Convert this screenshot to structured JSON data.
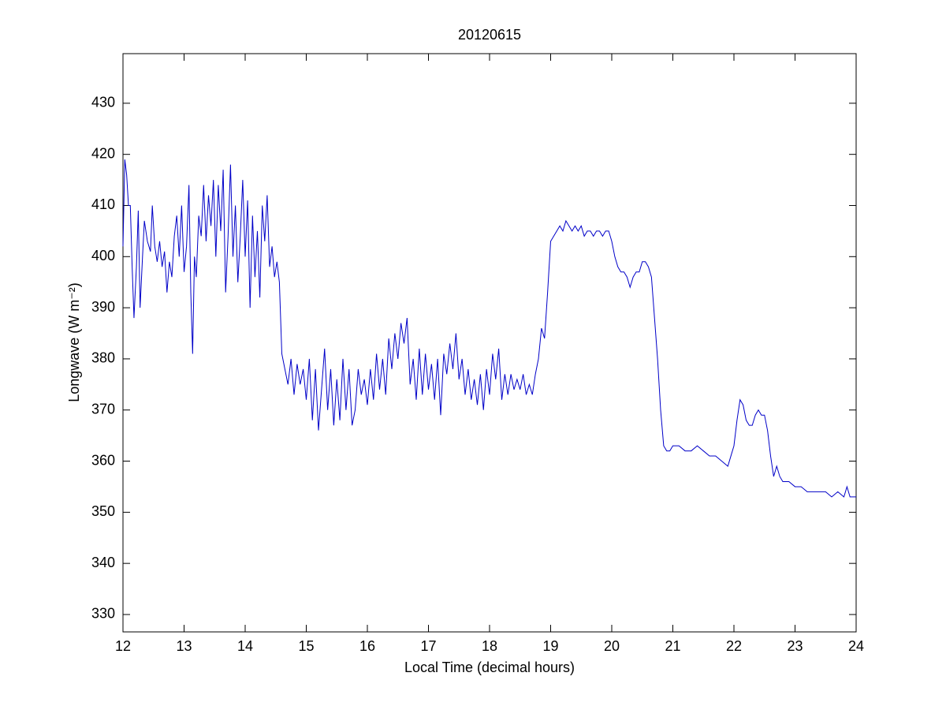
{
  "chart_data": {
    "type": "line",
    "title": "20120615",
    "xlabel": "Local Time (decimal hours)",
    "ylabel": "Longwave (W m⁻²)",
    "xlim": [
      12,
      24
    ],
    "xticks": [
      12,
      13,
      14,
      15,
      16,
      17,
      18,
      19,
      20,
      21,
      22,
      23,
      24
    ],
    "ylim": [
      326.6,
      439.7
    ],
    "yticks": [
      330,
      340,
      350,
      360,
      370,
      380,
      390,
      400,
      410,
      420,
      430
    ],
    "series": [
      {
        "color": "#0000c8",
        "x": [
          12.0,
          12.03,
          12.06,
          12.09,
          12.12,
          12.15,
          12.18,
          12.22,
          12.25,
          12.28,
          12.32,
          12.35,
          12.4,
          12.45,
          12.48,
          12.52,
          12.56,
          12.6,
          12.64,
          12.68,
          12.72,
          12.76,
          12.8,
          12.84,
          12.88,
          12.92,
          12.96,
          13.0,
          13.04,
          13.08,
          13.11,
          13.14,
          13.17,
          13.2,
          13.24,
          13.28,
          13.32,
          13.36,
          13.4,
          13.44,
          13.48,
          13.52,
          13.56,
          13.6,
          13.64,
          13.68,
          13.72,
          13.76,
          13.8,
          13.84,
          13.88,
          13.92,
          13.96,
          14.0,
          14.04,
          14.08,
          14.12,
          14.16,
          14.2,
          14.24,
          14.28,
          14.32,
          14.36,
          14.4,
          14.44,
          14.48,
          14.52,
          14.56,
          14.6,
          14.65,
          14.7,
          14.75,
          14.8,
          14.85,
          14.9,
          14.95,
          15.0,
          15.05,
          15.1,
          15.15,
          15.2,
          15.25,
          15.3,
          15.35,
          15.4,
          15.45,
          15.5,
          15.55,
          15.6,
          15.65,
          15.7,
          15.75,
          15.8,
          15.85,
          15.9,
          15.95,
          16.0,
          16.05,
          16.1,
          16.15,
          16.2,
          16.25,
          16.3,
          16.35,
          16.4,
          16.45,
          16.5,
          16.55,
          16.6,
          16.65,
          16.7,
          16.75,
          16.8,
          16.85,
          16.9,
          16.95,
          17.0,
          17.05,
          17.1,
          17.15,
          17.2,
          17.25,
          17.3,
          17.35,
          17.4,
          17.45,
          17.5,
          17.55,
          17.6,
          17.65,
          17.7,
          17.75,
          17.8,
          17.85,
          17.9,
          17.95,
          18.0,
          18.05,
          18.1,
          18.15,
          18.2,
          18.25,
          18.3,
          18.35,
          18.4,
          18.45,
          18.5,
          18.55,
          18.6,
          18.65,
          18.7,
          18.75,
          18.8,
          18.85,
          18.9,
          18.95,
          19.0,
          19.05,
          19.1,
          19.15,
          19.2,
          19.25,
          19.3,
          19.35,
          19.4,
          19.45,
          19.5,
          19.55,
          19.6,
          19.65,
          19.7,
          19.75,
          19.8,
          19.85,
          19.9,
          19.95,
          20.0,
          20.05,
          20.1,
          20.15,
          20.2,
          20.25,
          20.3,
          20.35,
          20.4,
          20.45,
          20.5,
          20.55,
          20.6,
          20.65,
          20.7,
          20.75,
          20.8,
          20.85,
          20.9,
          20.95,
          21.0,
          21.1,
          21.2,
          21.3,
          21.4,
          21.5,
          21.6,
          21.7,
          21.8,
          21.9,
          21.95,
          22.0,
          22.05,
          22.1,
          22.15,
          22.2,
          22.25,
          22.3,
          22.35,
          22.4,
          22.45,
          22.5,
          22.55,
          22.6,
          22.65,
          22.7,
          22.75,
          22.8,
          22.9,
          23.0,
          23.1,
          23.2,
          23.3,
          23.4,
          23.5,
          23.6,
          23.7,
          23.8,
          23.85,
          23.9,
          24.0
        ],
        "values": [
          402,
          419,
          416,
          410,
          410,
          398,
          388,
          398,
          409,
          390,
          400,
          407,
          403,
          401,
          410,
          402,
          399,
          403,
          398,
          401,
          393,
          399,
          396,
          404,
          408,
          400,
          410,
          397,
          402,
          414,
          393,
          381,
          400,
          396,
          408,
          404,
          414,
          403,
          412,
          406,
          415,
          400,
          414,
          405,
          417,
          393,
          404,
          418,
          400,
          410,
          395,
          404,
          415,
          400,
          411,
          390,
          408,
          396,
          405,
          392,
          410,
          403,
          412,
          398,
          402,
          396,
          399,
          395,
          381,
          378,
          375,
          380,
          373,
          379,
          375,
          378,
          372,
          380,
          368,
          378,
          366,
          374,
          382,
          370,
          378,
          367,
          376,
          368,
          380,
          370,
          378,
          367,
          370,
          378,
          373,
          376,
          371,
          378,
          372,
          381,
          374,
          380,
          373,
          384,
          378,
          385,
          380,
          387,
          383,
          388,
          375,
          380,
          372,
          382,
          373,
          381,
          374,
          379,
          372,
          380,
          369,
          381,
          377,
          383,
          378,
          385,
          376,
          380,
          373,
          378,
          372,
          376,
          371,
          377,
          370,
          378,
          373,
          381,
          376,
          382,
          372,
          377,
          373,
          377,
          374,
          376,
          374,
          377,
          373,
          375,
          373,
          377,
          380,
          386,
          384,
          393,
          403,
          404,
          405,
          406,
          405,
          407,
          406,
          405,
          406,
          405,
          406,
          404,
          405,
          405,
          404,
          405,
          405,
          404,
          405,
          405,
          403,
          400,
          398,
          397,
          397,
          396,
          394,
          396,
          397,
          397,
          399,
          399,
          398,
          396,
          388,
          380,
          370,
          363,
          362,
          362,
          363,
          363,
          362,
          362,
          363,
          362,
          361,
          361,
          360,
          359,
          361,
          363,
          368,
          372,
          371,
          368,
          367,
          367,
          369,
          370,
          369,
          369,
          366,
          361,
          357,
          359,
          357,
          356,
          356,
          355,
          355,
          354,
          354,
          354,
          354,
          353,
          354,
          353,
          355,
          353,
          353
        ]
      }
    ]
  }
}
